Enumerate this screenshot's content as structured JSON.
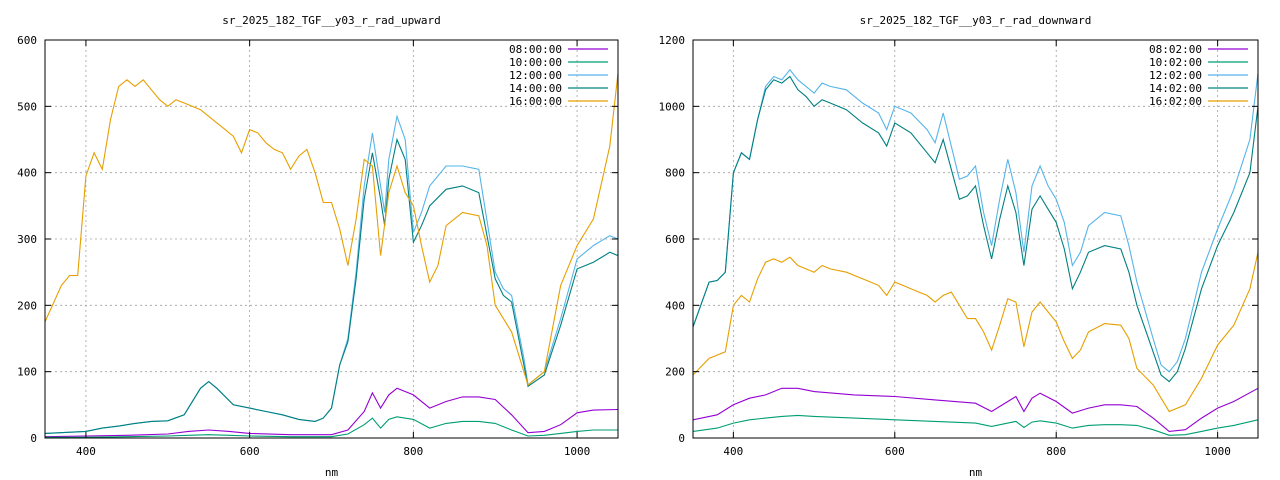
{
  "chart_data": [
    {
      "type": "line",
      "title": "sr_2025_182_TGF__y03_r_rad_upward",
      "xlabel": "nm",
      "ylabel": "",
      "xlim": [
        350,
        1050
      ],
      "ylim": [
        0,
        600
      ],
      "xticks": [
        400,
        600,
        800,
        1000
      ],
      "yticks": [
        0,
        100,
        200,
        300,
        400,
        500,
        600
      ],
      "grid": true,
      "legend": "top-right",
      "series": [
        {
          "name": "08:00:00",
          "color": "#9400d3",
          "x": [
            350,
            400,
            450,
            500,
            525,
            550,
            575,
            600,
            650,
            700,
            720,
            740,
            750,
            760,
            770,
            780,
            800,
            820,
            840,
            860,
            880,
            900,
            920,
            940,
            960,
            980,
            1000,
            1020,
            1050
          ],
          "y": [
            2,
            3,
            4,
            6,
            10,
            12,
            10,
            7,
            5,
            5,
            12,
            40,
            68,
            45,
            65,
            75,
            65,
            45,
            55,
            62,
            62,
            58,
            35,
            8,
            10,
            20,
            38,
            42,
            43
          ]
        },
        {
          "name": "10:00:00",
          "color": "#009e73",
          "x": [
            350,
            400,
            450,
            500,
            525,
            550,
            575,
            600,
            650,
            700,
            720,
            740,
            750,
            760,
            770,
            780,
            800,
            820,
            840,
            860,
            880,
            900,
            920,
            940,
            960,
            980,
            1000,
            1020,
            1050
          ],
          "y": [
            1,
            1,
            2,
            3,
            4,
            5,
            4,
            3,
            2,
            2,
            6,
            20,
            30,
            15,
            28,
            32,
            28,
            15,
            22,
            25,
            25,
            22,
            12,
            3,
            4,
            7,
            10,
            12,
            12
          ]
        },
        {
          "name": "12:00:00",
          "color": "#56b4e9",
          "x": [
            350,
            400,
            420,
            440,
            460,
            480,
            500,
            520,
            540,
            550,
            560,
            580,
            600,
            620,
            640,
            660,
            680,
            690,
            700,
            710,
            720,
            730,
            740,
            750,
            760,
            765,
            770,
            780,
            790,
            800,
            810,
            820,
            840,
            860,
            880,
            900,
            910,
            920,
            935,
            940,
            960,
            980,
            1000,
            1020,
            1040,
            1050
          ],
          "y": [
            7,
            10,
            15,
            18,
            22,
            25,
            26,
            35,
            75,
            85,
            75,
            50,
            45,
            40,
            35,
            28,
            25,
            30,
            45,
            110,
            150,
            250,
            380,
            460,
            380,
            340,
            420,
            485,
            450,
            310,
            340,
            380,
            410,
            410,
            405,
            250,
            225,
            215,
            120,
            80,
            100,
            180,
            270,
            290,
            305,
            300
          ]
        },
        {
          "name": "14:00:00",
          "color": "#008080",
          "x": [
            350,
            400,
            420,
            440,
            460,
            480,
            500,
            520,
            540,
            550,
            560,
            580,
            600,
            620,
            640,
            660,
            680,
            690,
            700,
            710,
            720,
            730,
            740,
            750,
            760,
            765,
            770,
            780,
            790,
            800,
            810,
            820,
            840,
            860,
            880,
            900,
            910,
            920,
            935,
            940,
            960,
            980,
            1000,
            1020,
            1040,
            1050
          ],
          "y": [
            7,
            10,
            15,
            18,
            22,
            25,
            26,
            35,
            75,
            85,
            75,
            50,
            45,
            40,
            35,
            28,
            25,
            30,
            45,
            110,
            145,
            240,
            360,
            430,
            360,
            320,
            390,
            450,
            420,
            295,
            320,
            350,
            375,
            380,
            370,
            240,
            215,
            205,
            110,
            78,
            95,
            170,
            255,
            265,
            280,
            275
          ]
        },
        {
          "name": "16:00:00",
          "color": "#e69f00",
          "x": [
            350,
            370,
            380,
            390,
            400,
            410,
            420,
            430,
            440,
            450,
            460,
            470,
            480,
            490,
            500,
            510,
            520,
            540,
            560,
            580,
            590,
            600,
            610,
            620,
            630,
            640,
            650,
            660,
            670,
            680,
            690,
            700,
            710,
            720,
            730,
            740,
            750,
            760,
            770,
            780,
            790,
            800,
            810,
            820,
            830,
            840,
            860,
            880,
            890,
            900,
            920,
            940,
            960,
            980,
            1000,
            1020,
            1040,
            1050
          ],
          "y": [
            175,
            230,
            245,
            245,
            395,
            430,
            405,
            480,
            530,
            540,
            530,
            540,
            525,
            510,
            500,
            510,
            505,
            495,
            475,
            455,
            430,
            465,
            460,
            445,
            435,
            430,
            405,
            425,
            435,
            400,
            355,
            355,
            315,
            260,
            330,
            420,
            410,
            275,
            370,
            410,
            370,
            350,
            290,
            235,
            260,
            320,
            340,
            335,
            290,
            200,
            160,
            80,
            100,
            230,
            290,
            330,
            440,
            550
          ]
        }
      ]
    },
    {
      "type": "line",
      "title": "sr_2025_182_TGF__y03_r_rad_downward",
      "xlabel": "nm",
      "ylabel": "",
      "xlim": [
        350,
        1050
      ],
      "ylim": [
        0,
        1200
      ],
      "xticks": [
        400,
        600,
        800,
        1000
      ],
      "yticks": [
        0,
        200,
        400,
        600,
        800,
        1000,
        1200
      ],
      "grid": true,
      "legend": "top-right",
      "series": [
        {
          "name": "08:02:00",
          "color": "#9400d3",
          "x": [
            350,
            380,
            400,
            420,
            440,
            460,
            480,
            500,
            550,
            600,
            650,
            700,
            720,
            740,
            750,
            760,
            770,
            780,
            800,
            820,
            840,
            860,
            880,
            900,
            920,
            940,
            960,
            980,
            1000,
            1020,
            1050
          ],
          "y": [
            55,
            70,
            100,
            120,
            130,
            150,
            150,
            140,
            130,
            125,
            115,
            105,
            80,
            110,
            125,
            80,
            120,
            135,
            110,
            75,
            90,
            100,
            100,
            95,
            60,
            20,
            25,
            60,
            90,
            110,
            150
          ]
        },
        {
          "name": "10:02:00",
          "color": "#009e73",
          "x": [
            350,
            380,
            400,
            420,
            440,
            460,
            480,
            500,
            550,
            600,
            650,
            700,
            720,
            740,
            750,
            760,
            770,
            780,
            800,
            820,
            840,
            860,
            880,
            900,
            920,
            940,
            960,
            980,
            1000,
            1020,
            1050
          ],
          "y": [
            20,
            30,
            45,
            55,
            60,
            65,
            68,
            65,
            60,
            55,
            50,
            45,
            35,
            45,
            50,
            32,
            48,
            52,
            45,
            30,
            38,
            40,
            40,
            38,
            25,
            8,
            10,
            20,
            30,
            38,
            55
          ]
        },
        {
          "name": "12:02:00",
          "color": "#56b4e9",
          "x": [
            350,
            370,
            380,
            390,
            400,
            410,
            420,
            430,
            440,
            450,
            460,
            470,
            480,
            490,
            500,
            510,
            520,
            540,
            560,
            580,
            590,
            600,
            620,
            640,
            650,
            660,
            680,
            690,
            700,
            710,
            720,
            730,
            740,
            750,
            760,
            770,
            780,
            790,
            800,
            810,
            820,
            830,
            840,
            860,
            880,
            890,
            900,
            920,
            930,
            940,
            950,
            960,
            980,
            1000,
            1020,
            1040,
            1050
          ],
          "y": [
            335,
            470,
            475,
            500,
            800,
            860,
            840,
            960,
            1060,
            1090,
            1080,
            1110,
            1080,
            1060,
            1040,
            1070,
            1060,
            1050,
            1010,
            980,
            930,
            1000,
            980,
            930,
            890,
            980,
            780,
            790,
            820,
            680,
            580,
            720,
            840,
            740,
            560,
            760,
            820,
            760,
            720,
            650,
            520,
            560,
            640,
            680,
            670,
            580,
            470,
            300,
            220,
            200,
            230,
            300,
            500,
            630,
            750,
            900,
            1100
          ]
        },
        {
          "name": "14:02:00",
          "color": "#008080",
          "x": [
            350,
            370,
            380,
            390,
            400,
            410,
            420,
            430,
            440,
            450,
            460,
            470,
            480,
            490,
            500,
            510,
            520,
            540,
            560,
            580,
            590,
            600,
            620,
            640,
            650,
            660,
            680,
            690,
            700,
            710,
            720,
            730,
            740,
            750,
            760,
            770,
            780,
            790,
            800,
            810,
            820,
            830,
            840,
            860,
            880,
            890,
            900,
            920,
            930,
            940,
            950,
            960,
            980,
            1000,
            1020,
            1040,
            1050
          ],
          "y": [
            335,
            470,
            475,
            500,
            800,
            860,
            840,
            960,
            1050,
            1080,
            1070,
            1090,
            1050,
            1030,
            1000,
            1020,
            1010,
            990,
            950,
            920,
            880,
            950,
            920,
            860,
            830,
            900,
            720,
            730,
            760,
            640,
            540,
            660,
            760,
            680,
            520,
            690,
            730,
            690,
            650,
            570,
            450,
            500,
            560,
            580,
            570,
            500,
            400,
            260,
            190,
            170,
            200,
            270,
            450,
            580,
            680,
            800,
            1000
          ]
        },
        {
          "name": "16:02:00",
          "color": "#e69f00",
          "x": [
            350,
            370,
            380,
            390,
            400,
            410,
            420,
            430,
            440,
            450,
            460,
            470,
            480,
            490,
            500,
            510,
            520,
            540,
            560,
            580,
            590,
            600,
            610,
            620,
            630,
            640,
            650,
            660,
            670,
            680,
            690,
            700,
            710,
            720,
            730,
            740,
            750,
            760,
            770,
            780,
            790,
            800,
            810,
            820,
            830,
            840,
            860,
            880,
            890,
            900,
            920,
            940,
            960,
            980,
            1000,
            1020,
            1040,
            1050
          ],
          "y": [
            190,
            240,
            250,
            260,
            400,
            430,
            410,
            480,
            530,
            540,
            530,
            545,
            520,
            510,
            500,
            520,
            510,
            500,
            480,
            460,
            430,
            470,
            460,
            450,
            440,
            430,
            410,
            430,
            440,
            400,
            360,
            360,
            320,
            265,
            340,
            420,
            410,
            275,
            380,
            410,
            380,
            350,
            290,
            240,
            265,
            320,
            345,
            340,
            300,
            210,
            160,
            80,
            100,
            180,
            280,
            340,
            450,
            560
          ]
        }
      ]
    }
  ]
}
